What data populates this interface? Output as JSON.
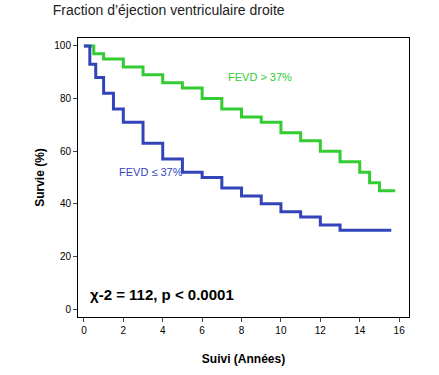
{
  "chart_data": {
    "type": "line",
    "line_style": "step",
    "title": "Fraction d’éjection ventriculaire droite",
    "x_label": "Suivi (Années)",
    "y_label": "Survie (%)",
    "xlim": [
      -0.3,
      16.5
    ],
    "ylim": [
      -3,
      103
    ],
    "xticks": [
      0,
      2,
      4,
      6,
      8,
      10,
      12,
      14,
      16
    ],
    "yticks": [
      0,
      20,
      40,
      60,
      80,
      100
    ],
    "grid": false,
    "series": [
      {
        "name": "FEVD > 37%",
        "color": "#33cc33",
        "x": [
          0,
          0.5,
          1,
          2,
          3,
          4,
          5,
          6,
          7,
          8,
          9,
          10,
          11,
          12,
          13,
          14,
          14.5,
          15,
          15.8
        ],
        "values": [
          100,
          97,
          95,
          92,
          89,
          86,
          84,
          80,
          76,
          73,
          71,
          67,
          64,
          60,
          56,
          52,
          48,
          45,
          45
        ]
      },
      {
        "name": "FEVD ≤ 37%",
        "color": "#3344bb",
        "x": [
          0,
          0.3,
          0.6,
          1,
          1.5,
          2,
          3,
          4,
          5,
          6,
          7,
          8,
          9,
          10,
          11,
          12,
          13,
          14,
          15,
          15.6
        ],
        "values": [
          100,
          93,
          88,
          82,
          76,
          71,
          63,
          57,
          52,
          50,
          46,
          43,
          40,
          37,
          35,
          32,
          30,
          30,
          30,
          30
        ]
      }
    ],
    "annotations": [
      "χ-2 = 112, p < 0.0001"
    ]
  }
}
